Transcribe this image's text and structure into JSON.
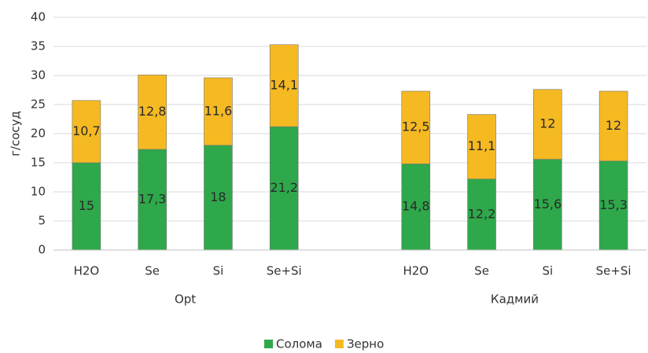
{
  "chart_data": {
    "type": "stacked_bar",
    "ylabel": "г/сосуд",
    "categories": [
      "H2O",
      "Se",
      "Si",
      "Se+Si",
      null,
      "H2O",
      "Se",
      "Si",
      "Se+Si"
    ],
    "group_labels": [
      "Opt",
      "Кадмий"
    ],
    "series": [
      {
        "name": "Солома",
        "color": "#2ea84a",
        "values": [
          15,
          17.3,
          18,
          21.2,
          null,
          14.8,
          12.2,
          15.6,
          15.3
        ],
        "value_labels": [
          "15",
          "17,3",
          "18",
          "21,2",
          null,
          "14,8",
          "12,2",
          "15,6",
          "15,3"
        ]
      },
      {
        "name": "Зерно",
        "color": "#f5b922",
        "values": [
          10.7,
          12.8,
          11.6,
          14.1,
          null,
          12.5,
          11.1,
          12,
          12
        ],
        "value_labels": [
          "10,7",
          "12,8",
          "11,6",
          "14,1",
          null,
          "12,5",
          "11,1",
          "12",
          "12"
        ]
      }
    ],
    "ylim": [
      0,
      40
    ],
    "yticks": [
      0,
      5,
      10,
      15,
      20,
      25,
      30,
      35,
      40
    ],
    "grid": true,
    "legend": "bottom"
  }
}
